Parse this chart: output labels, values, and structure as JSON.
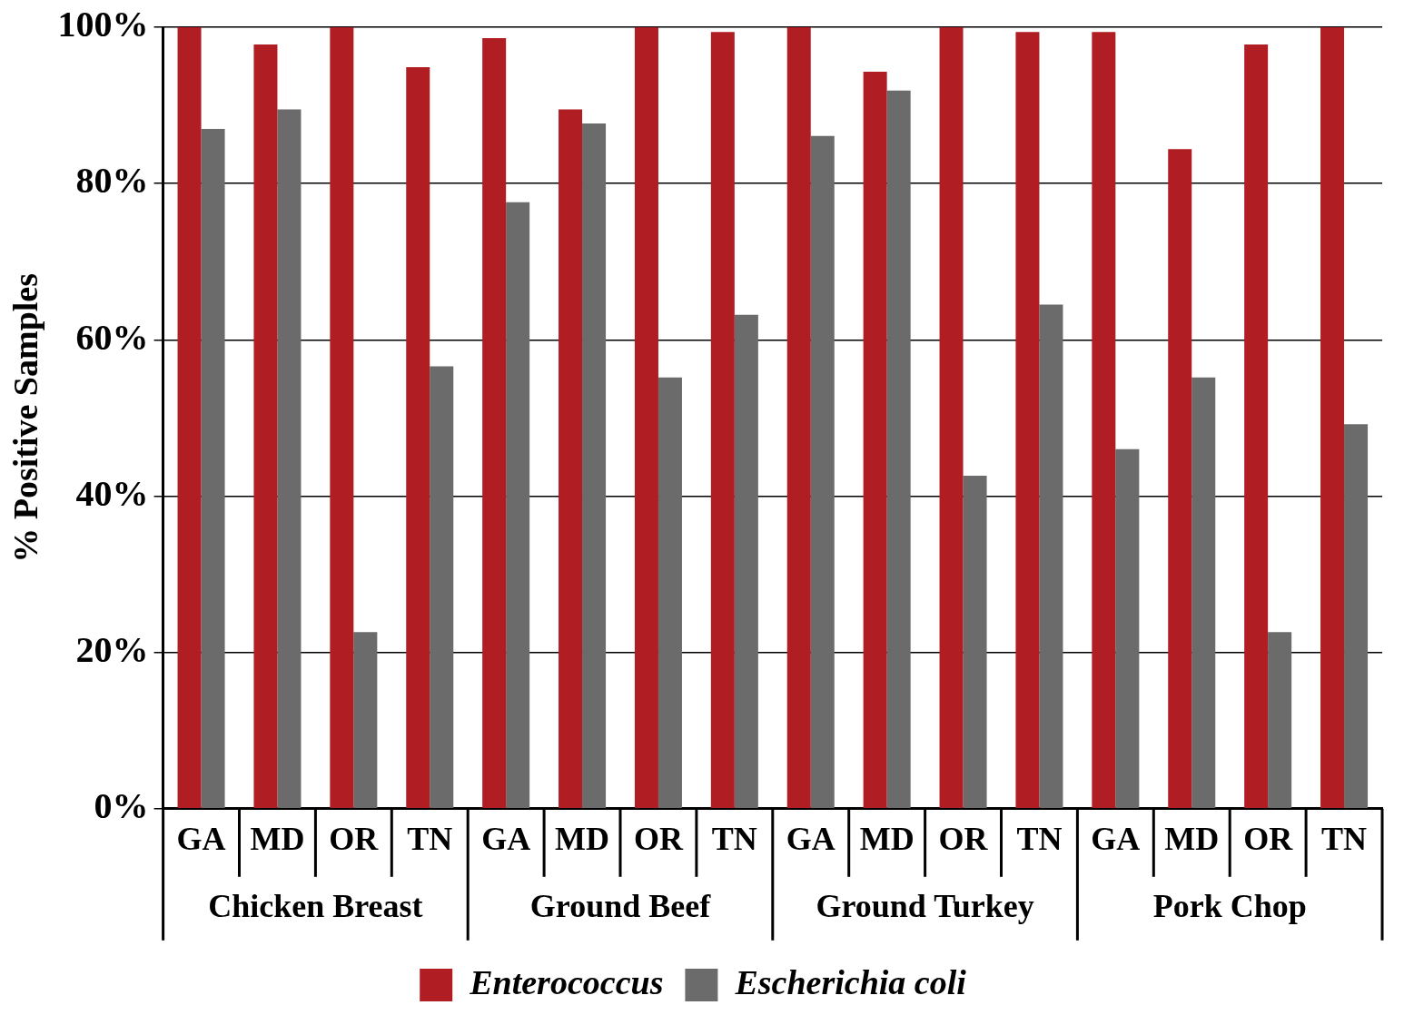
{
  "chart_data": {
    "type": "bar",
    "ylabel": "% Positive Samples",
    "categories": [
      "GA",
      "MD",
      "OR",
      "TN",
      "GA",
      "MD",
      "OR",
      "TN",
      "GA",
      "MD",
      "OR",
      "TN",
      "GA",
      "MD",
      "OR",
      "TN"
    ],
    "annotations": [
      "Chicken Breast",
      "Ground Beef",
      "Ground Turkey",
      "Pork Chop"
    ],
    "series": [
      {
        "name": "Enterococcus",
        "color": "#b01e23",
        "values": [
          100,
          97.8,
          100,
          94.9,
          98.6,
          89.5,
          100,
          99.4,
          100,
          94.3,
          100,
          99.4,
          99.4,
          84.4,
          97.8,
          100
        ]
      },
      {
        "name": "Escherichia coli",
        "color": "#6b6b6b",
        "values": [
          87.0,
          89.5,
          22.6,
          56.6,
          77.6,
          87.7,
          55.2,
          63.2,
          86.1,
          91.9,
          42.6,
          64.5,
          46.0,
          55.2,
          22.6,
          49.2
        ]
      }
    ],
    "ylim": [
      0,
      100
    ],
    "yticks": [
      {
        "value": 0,
        "label": "0%"
      },
      {
        "value": 20,
        "label": "20%"
      },
      {
        "value": 40,
        "label": "40%"
      },
      {
        "value": 60,
        "label": "60%"
      },
      {
        "value": 80,
        "label": "80%"
      },
      {
        "value": 100,
        "label": "100%"
      }
    ],
    "grid": "y",
    "legend": "bottom"
  }
}
